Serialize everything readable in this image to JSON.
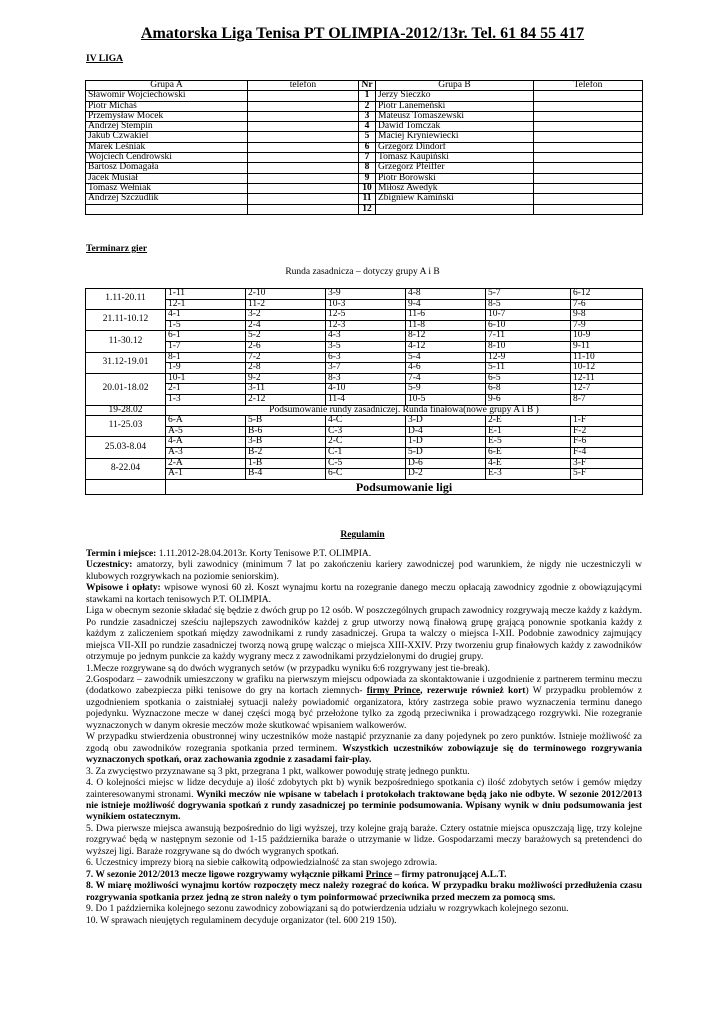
{
  "title": "Amatorska Liga Tenisa PT OLIMPIA-2012/13r. Tel. 61 84 55 417",
  "league": "IV LIGA",
  "players_table": {
    "headers": [
      "Grupa A",
      "telefon",
      "Nr",
      "Grupa B",
      "Telefon"
    ],
    "rows": [
      [
        "Sławomir Wojciechowski",
        "",
        "1",
        "Jerzy Sieczko",
        ""
      ],
      [
        "Piotr Michaś",
        "",
        "2",
        "Piotr Lanemeński",
        ""
      ],
      [
        "Przemysław Mocek",
        "",
        "3",
        "Mateusz Tomaszewski",
        ""
      ],
      [
        "Andrzej Stempin",
        "",
        "4",
        "Dawid Tomczak",
        ""
      ],
      [
        "Jakub Czwakiel",
        "",
        "5",
        "Maciej Kryniewiecki",
        ""
      ],
      [
        "Marek Leśniak",
        "",
        "6",
        "Grzegorz Dindorf",
        ""
      ],
      [
        "Wojciech Cendrowski",
        "",
        "7",
        "Tomasz Kaupiński",
        ""
      ],
      [
        "Bartosz Domagała",
        "",
        "8",
        "Grzegorz Pfeiffer",
        ""
      ],
      [
        "Jacek Musiał",
        "",
        "9",
        "Piotr Borowski",
        ""
      ],
      [
        "Tomasz Wełniak",
        "",
        "10",
        "Miłosz Awedyk",
        ""
      ],
      [
        "Andrzej Szczudlik",
        "",
        "11",
        "Zbigniew Kamiński",
        ""
      ],
      [
        "",
        "",
        "12",
        "",
        ""
      ]
    ]
  },
  "schedule_heading": "Terminarz gier",
  "schedule_subtitle": "Runda zasadnicza – dotyczy grupy A i B",
  "schedule": [
    {
      "date": "1.11-20.11",
      "rows": [
        [
          "1-11",
          "2-10",
          "3-9",
          "4-8",
          "5-7",
          "6-12"
        ],
        [
          "12-1",
          "11-2",
          "10-3",
          "9-4",
          "8-5",
          "7-6"
        ]
      ]
    },
    {
      "date": "21.11-10.12",
      "rows": [
        [
          "4-1",
          "3-2",
          "12-5",
          "11-6",
          "10-7",
          "9-8"
        ],
        [
          "1-5",
          "2-4",
          "12-3",
          "11-8",
          "6-10",
          "7-9"
        ]
      ]
    },
    {
      "date": "11-30.12",
      "rows": [
        [
          "6-1",
          "5-2",
          "4-3",
          "8-12",
          "7-11",
          "10-9"
        ],
        [
          "1-7",
          "2-6",
          "3-5",
          "4-12",
          "8-10",
          "9-11"
        ]
      ]
    },
    {
      "date": "31.12-19.01",
      "rows": [
        [
          "8-1",
          "7-2",
          "6-3",
          "5-4",
          "12-9",
          "11-10"
        ],
        [
          "1-9",
          "2-8",
          "3-7",
          "4-6",
          "5-11",
          "10-12"
        ]
      ]
    },
    {
      "date": "20.01-18.02",
      "rows": [
        [
          "10-1",
          "9-2",
          "8-3",
          "7-4",
          "6-5",
          "12-11"
        ],
        [
          "2-1",
          "3-11",
          "4-10",
          "5-9",
          "6-8",
          "12-7"
        ],
        [
          "1-3",
          "2-12",
          "11-4",
          "10-5",
          "9-6",
          "8-7"
        ]
      ]
    },
    {
      "date": "19-28.02",
      "summary": "Podsumowanie rundy zasadniczej. Runda finałowa(nowe grupy A i B )"
    },
    {
      "date": "11-25.03",
      "rows": [
        [
          "6-A",
          "5-B",
          "4-C",
          "3-D",
          "2-E",
          "1-F"
        ],
        [
          "A-5",
          "B-6",
          "C-3",
          "D-4",
          "E-1",
          "F-2"
        ]
      ]
    },
    {
      "date": "25.03-8.04",
      "rows": [
        [
          "4-A",
          "3-B",
          "2-C",
          "1-D",
          "E-5",
          "F-6"
        ],
        [
          "A-3",
          "B-2",
          "C-1",
          "5-D",
          "6-E",
          "F-4"
        ]
      ]
    },
    {
      "date": "8-22.04",
      "rows": [
        [
          "2-A",
          "1-B",
          "C-5",
          "D-6",
          "4-E",
          "3-F"
        ],
        [
          "A-1",
          "B-4",
          "6-C",
          "D-2",
          "E-3",
          "5-F"
        ]
      ]
    },
    {
      "date": "",
      "final": "Podsumowanie ligi"
    }
  ],
  "regulamin_heading": "Regulamin",
  "regulamin": [
    [
      {
        "t": "Termin i miejsce:",
        "b": true
      },
      {
        "t": " 1.11.2012-28.04.2013r. Korty Tenisowe P.T. OLIMPIA."
      }
    ],
    [
      {
        "t": "Uczestnicy:",
        "b": true
      },
      {
        "t": " amatorzy, byli zawodnicy (minimum 7 lat po zakończeniu kariery zawodniczej pod warunkiem, że nigdy nie uczestniczyli w klubowych rozgrywkach na poziomie seniorskim)."
      }
    ],
    [
      {
        "t": "Wpisowe i opłaty:",
        "b": true
      },
      {
        "t": " wpisowe wynosi 60 zł. Koszt wynajmu kortu na rozegranie danego meczu opłacają zawodnicy zgodnie z obowiązującymi stawkami na kortach tenisowych P.T. OLIMPIA."
      }
    ],
    [
      {
        "t": "Liga w obecnym sezonie składać się będzie z dwóch grup po 12 osób. W poszczególnych grupach zawodnicy rozgrywają mecze każdy z każdym. Po rundzie zasadniczej  sześciu najlepszych zawodników każdej z grup utworzy nową finałową grupę grającą ponownie spotkania każdy z każdym z zaliczeniem spotkań między zawodnikami z rundy zasadniczej. Grupa ta walczy o miejsca I-XII. Podobnie zawodnicy zajmujący miejsca VII-XII po rundzie zasadniczej tworzą nową grupę walcząc o miejsca XIII-XXIV. Przy tworzeniu grup finałowych każdy z zawodników otrzymuje po jednym punkcie za każdy wygrany mecz z zawodnikami przydzielonymi do drugiej grupy."
      }
    ],
    [
      {
        "t": "1.Mecze rozgrywane są do dwóch wygranych setów (w przypadku wyniku 6:6 rozgrywany jest tie-break)."
      }
    ],
    [
      {
        "t": "2.Gospodarz – zawodnik umieszczony w grafiku na pierwszym miejscu odpowiada za skontaktowanie i uzgodnienie z partnerem terminu meczu (dodatkowo zabezpiecza piłki tenisowe do gry na kortach ziemnych- "
      },
      {
        "t": "firmy Prince",
        "b": true,
        "u": true
      },
      {
        "t": ", rezerwuje również kort",
        "b": true
      },
      {
        "t": ") W przypadku problemów z uzgodnieniem spotkania o zaistniałej sytuacji należy powiadomić organizatora, który zastrzega sobie prawo wyznaczenia terminu danego pojedynku. Wyznaczone mecze w danej części mogą być przełożone tylko za zgodą przeciwnika i prowadzącego rozgrywki. Nie rozegranie wyznaczonych w danym okresie meczów może skutkować wpisaniem walkowerów."
      }
    ],
    [
      {
        "t": "W przypadku stwierdzenia obustronnej winy uczestników może nastąpić przyznanie za dany pojedynek po zero punktów. Istnieje możliwość za zgodą obu zawodników rozegrania spotkania  przed terminem. "
      },
      {
        "t": "Wszystkich uczestników zobowiązuje się do terminowego rozgrywania wyznaczonych spotkań, oraz zachowania zgodnie z zasadami fair-play.",
        "b": true
      }
    ],
    [
      {
        "t": "3. Za zwycięstwo przyznawane są 3 pkt, przegrana 1 pkt, walkower powoduję stratę jednego punktu."
      }
    ],
    [
      {
        "t": "4. O kolejności miejsc w lidze decyduje a) ilość zdobytych pkt b) wynik bezpośredniego spotkania c) ilość zdobytych setów i gemów między zainteresowanymi stronami. "
      },
      {
        "t": "Wyniki meczów nie wpisane w tabelach i protokołach traktowane będą jako nie odbyte. W sezonie 2012/2013 nie istnieje możliwość dogrywania spotkań z rundy zasadniczej po terminie podsumowania. Wpisany wynik w dniu podsumowania jest wynikiem ostatecznym.",
        "b": true
      }
    ],
    [
      {
        "t": "5. Dwa pierwsze miejsca awansują bezpośrednio do ligi wyższej, trzy kolejne grają baraże. Cztery ostatnie miejsca opuszczają ligę, trzy kolejne rozgrywać będą w następnym sezonie od 1-15 października baraże o utrzymanie w lidze. Gospodarzami meczy barażowych są pretendenci do wyższej ligi. Baraże  rozgrywane są do dwóch wygranych spotkań."
      }
    ],
    [
      {
        "t": "6. Uczestnicy imprezy biorą na siebie całkowitą odpowiedzialność za stan swojego zdrowia."
      }
    ],
    [
      {
        "t": "7. W sezonie 2012/2013 mecze ligowe rozgrywamy wyłącznie piłkami ",
        "b": true
      },
      {
        "t": "Prince",
        "b": true,
        "u": true
      },
      {
        "t": " – firmy patronującej  A.L.T.",
        "b": true
      }
    ],
    [
      {
        "t": "8. W miarę możliwości wynajmu kortów rozpoczęty mecz należy rozegrać do końca. W przypadku braku możliwości przedłużenia czasu rozgrywania spotkania przez jedną ze stron należy o tym poinformować przeciwnika przed meczem za pomocą sms.",
        "b": true
      }
    ],
    [
      {
        "t": "9. Do 1 października kolejnego sezonu zawodnicy zobowiązani są do potwierdzenia udziału w rozgrywkach kolejnego sezonu."
      }
    ],
    [
      {
        "t": "10. W sprawach nieujętych regulaminem decyduje organizator (tel. 600 219 150)."
      }
    ]
  ]
}
